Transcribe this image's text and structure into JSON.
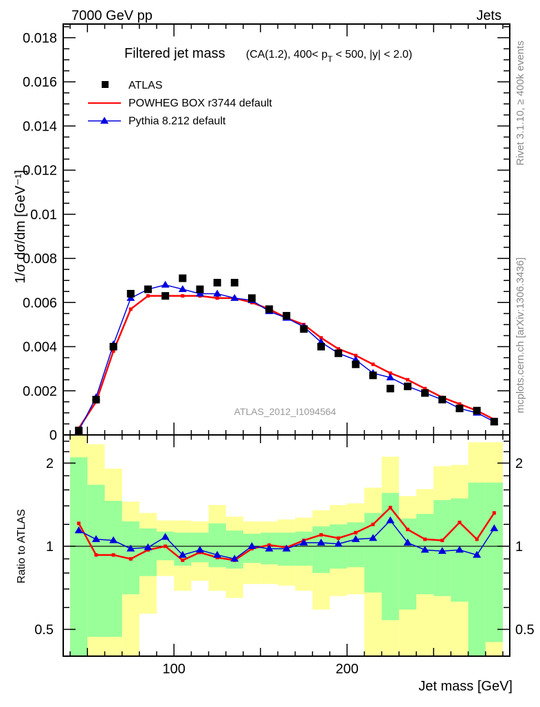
{
  "header": {
    "left": "7000 GeV pp",
    "right": "Jets"
  },
  "side_text": {
    "rivet": "Rivet 3.1.10, ≥ 400k events",
    "mcplots": "mcplots.cern.ch [arXiv:1306.3436]"
  },
  "watermark": "ATLAS_2012_I1094564",
  "chart_data": [
    {
      "type": "line",
      "title": "Filtered jet mass",
      "subtitle": "(CA(1.2), 400< p_T < 500, |y| < 2.0)",
      "xlabel": "",
      "ylabel": "1/σ dσ/dm [GeV⁻¹]",
      "xlim": [
        36,
        294
      ],
      "ylim": [
        0,
        0.01862
      ],
      "yticks": [
        "0",
        "0.002",
        "0.004",
        "0.006",
        "0.008",
        "0.01",
        "0.012",
        "0.014",
        "0.016",
        "0.018"
      ],
      "ytick_values": [
        0,
        0.002,
        0.004,
        0.006,
        0.008,
        0.01,
        0.012,
        0.014,
        0.016,
        0.018
      ],
      "legend_placement": "top-left",
      "x": [
        45,
        55,
        65,
        75,
        85,
        95,
        105,
        115,
        125,
        135,
        145,
        155,
        165,
        175,
        185,
        195,
        205,
        215,
        225,
        235,
        245,
        255,
        265,
        275,
        285
      ],
      "series": [
        {
          "name": "ATLAS",
          "color": "#000000",
          "marker": "square",
          "values": [
            0.0002,
            0.0016,
            0.004,
            0.0064,
            0.0066,
            0.0063,
            0.0071,
            0.0066,
            0.0069,
            0.0069,
            0.0062,
            0.0057,
            0.0054,
            0.0048,
            0.004,
            0.0037,
            0.0032,
            0.0027,
            0.0021,
            0.0022,
            0.0019,
            0.0016,
            0.0012,
            0.0011,
            0.0006
          ]
        },
        {
          "name": "POWHEG BOX r3744 default",
          "color": "#ff0000",
          "marker": "line",
          "values": [
            0.0003,
            0.0015,
            0.0038,
            0.0057,
            0.0063,
            0.0063,
            0.0063,
            0.0063,
            0.0062,
            0.0062,
            0.006,
            0.0057,
            0.0053,
            0.005,
            0.0044,
            0.0039,
            0.0036,
            0.0032,
            0.0028,
            0.0025,
            0.0021,
            0.0017,
            0.0014,
            0.0011,
            0.0007
          ]
        },
        {
          "name": "Pythia 8.212 default",
          "color": "#0000dd",
          "marker": "triangle",
          "values": [
            0.0002,
            0.0017,
            0.0041,
            0.0062,
            0.0066,
            0.0068,
            0.0066,
            0.0064,
            0.0064,
            0.0062,
            0.0061,
            0.0056,
            0.0053,
            0.0049,
            0.0042,
            0.0037,
            0.0034,
            0.0028,
            0.0026,
            0.0022,
            0.0019,
            0.0016,
            0.0012,
            0.001,
            0.0006
          ]
        }
      ]
    },
    {
      "type": "line",
      "title": "",
      "xlabel": "Jet mass [GeV]",
      "ylabel": "Ratio to ATLAS",
      "xlim": [
        36,
        294
      ],
      "ylim": [
        0.4,
        2.53
      ],
      "yscale": "log",
      "xticks": [
        "100",
        "200"
      ],
      "xtick_values": [
        100,
        200
      ],
      "yticks": [
        "0.5",
        "1",
        "2"
      ],
      "ytick_values": [
        0.5,
        1,
        2
      ],
      "bin_edges": [
        40,
        50,
        60,
        70,
        80,
        90,
        100,
        110,
        120,
        130,
        140,
        150,
        160,
        170,
        180,
        190,
        200,
        210,
        220,
        230,
        240,
        250,
        260,
        270,
        280,
        290
      ],
      "band_1sigma": {
        "color": "#99ff99",
        "upper": [
          2.1,
          1.67,
          1.46,
          1.23,
          1.16,
          1.13,
          1.12,
          1.12,
          1.21,
          1.14,
          1.11,
          1.12,
          1.12,
          1.13,
          1.18,
          1.2,
          1.22,
          1.32,
          1.56,
          1.26,
          1.31,
          1.47,
          1.49,
          1.7,
          1.7
        ],
        "lower": [
          0.3,
          0.47,
          0.47,
          0.67,
          0.78,
          0.89,
          0.85,
          0.875,
          0.84,
          0.83,
          0.87,
          0.86,
          0.85,
          0.85,
          0.8,
          0.83,
          0.84,
          0.68,
          0.54,
          0.59,
          0.67,
          0.66,
          0.63,
          0.3,
          0.45
        ]
      },
      "band_2sigma": {
        "color": "#ffff99",
        "upper": [
          3.0,
          2.34,
          1.91,
          1.45,
          1.32,
          1.24,
          1.24,
          1.23,
          1.41,
          1.28,
          1.23,
          1.23,
          1.25,
          1.27,
          1.35,
          1.41,
          1.43,
          1.63,
          2.11,
          1.52,
          1.61,
          1.95,
          1.97,
          2.38,
          2.38
        ],
        "lower": [
          0.3,
          0.3,
          0.3,
          0.3,
          0.57,
          0.78,
          0.69,
          0.75,
          0.69,
          0.65,
          0.73,
          0.73,
          0.72,
          0.69,
          0.59,
          0.66,
          0.67,
          0.3,
          0.3,
          0.3,
          0.3,
          0.3,
          0.3,
          0.3,
          0.3
        ]
      },
      "x": [
        45,
        55,
        65,
        75,
        85,
        95,
        105,
        115,
        125,
        135,
        145,
        155,
        165,
        175,
        185,
        195,
        205,
        215,
        225,
        235,
        245,
        255,
        265,
        275,
        285
      ],
      "series": [
        {
          "name": "POWHEG BOX r3744 default",
          "color": "#ff0000",
          "values": [
            1.21,
            0.93,
            0.93,
            0.9,
            0.97,
            1.0,
            0.89,
            0.95,
            0.91,
            0.89,
            0.98,
            1.01,
            0.99,
            1.05,
            1.1,
            1.07,
            1.12,
            1.2,
            1.38,
            1.15,
            1.06,
            1.05,
            1.22,
            1.06,
            1.32
          ]
        },
        {
          "name": "Pythia 8.212 default",
          "color": "#0000dd",
          "values": [
            1.14,
            1.06,
            1.05,
            0.98,
            0.99,
            1.08,
            0.93,
            0.97,
            0.93,
            0.9,
            1.0,
            0.98,
            0.98,
            1.03,
            1.03,
            1.02,
            1.06,
            1.07,
            1.24,
            1.03,
            0.97,
            0.96,
            0.97,
            0.93,
            1.16
          ]
        }
      ]
    }
  ]
}
